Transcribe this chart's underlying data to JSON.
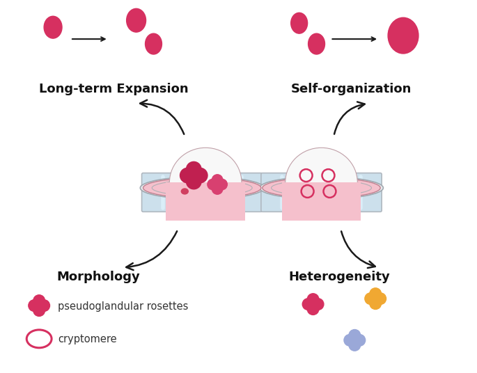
{
  "bg_color": "#ffffff",
  "pink_cell_color": "#d63060",
  "dish_pink_fill": "#f5c0cc",
  "dish_blue_stripe": "#cce0ec",
  "dish_rim_color": "#b0b8c0",
  "organoid_white": "#f8f8f8",
  "arrow_color": "#1a1a1a",
  "text_color": "#111111",
  "orange_color": "#f0a832",
  "lavender_color": "#9aa8d8",
  "dark_pink_rosette": "#c02050",
  "labels": {
    "top_left": "Long-term Expansion",
    "top_right": "Self-organization",
    "bottom_left": "Morphology",
    "bottom_right": "Heterogeneity",
    "legend1": "pseudoglandular rosettes",
    "legend2": "cryptomere"
  }
}
